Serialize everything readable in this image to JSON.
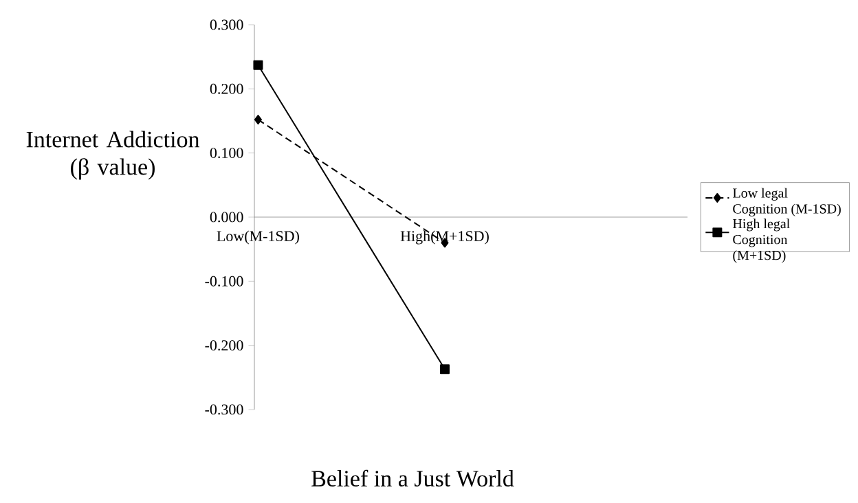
{
  "chart_data": {
    "type": "line",
    "ylabel": "Internet Addiction (β value)",
    "xlabel": "Belief in a Just World",
    "categories": [
      "Low(M-1SD)",
      "High(M+1SD)"
    ],
    "ylim": [
      -0.3,
      0.3
    ],
    "yticks": [
      {
        "value": -0.3,
        "label": "-0.300"
      },
      {
        "value": -0.2,
        "label": "-0.200"
      },
      {
        "value": -0.1,
        "label": "-0.100"
      },
      {
        "value": 0,
        "label": "0.000"
      },
      {
        "value": 0.1,
        "label": "0.100"
      },
      {
        "value": 0.2,
        "label": "0.200"
      },
      {
        "value": 0.3,
        "label": "0.300"
      }
    ],
    "legend": "right",
    "grid": false,
    "series": [
      {
        "name": "Low legal Cognition (M-1SD)",
        "color": "#000000",
        "values": [
          0.152,
          -0.04
        ],
        "marker": "diamond",
        "line_style": "dashed"
      },
      {
        "name": "High legal Cognition (M+1SD)",
        "color": "#000000",
        "values": [
          0.237,
          -0.237
        ],
        "marker": "square",
        "line_style": "solid"
      }
    ]
  }
}
